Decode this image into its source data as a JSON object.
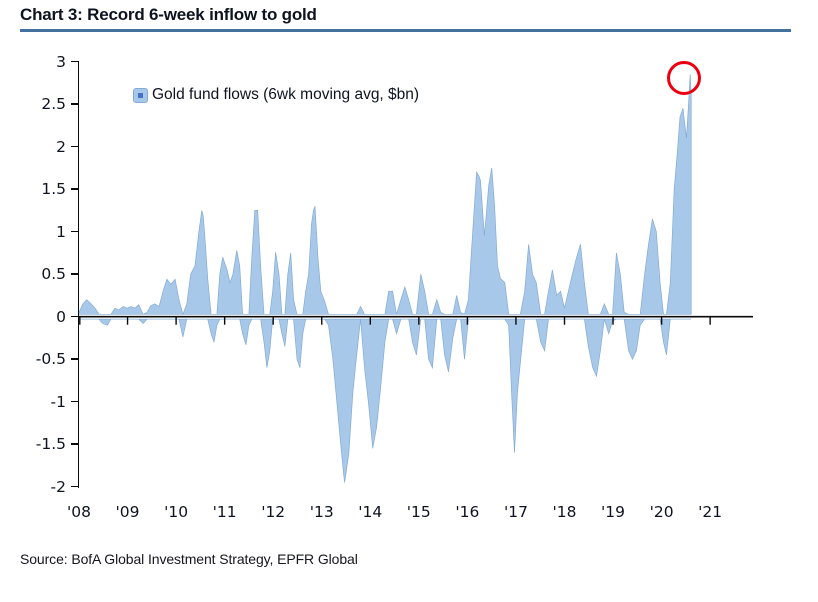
{
  "header": {
    "title": "Chart 3: Record 6-week inflow to gold"
  },
  "legend": {
    "label": "Gold fund flows (6wk moving avg, $bn)"
  },
  "footer": {
    "source": "Source: BofA Global Investment Strategy, EPFR Global"
  },
  "colors": {
    "bar_fill": "#a8c8ea",
    "bar_edge": "#84abd3",
    "axis": "#0a0a0a",
    "text": "#0e1320",
    "title_underline": "#44719e",
    "annotation_red": "#ec0010",
    "legend_inner": "#4472c4",
    "background": "#ffffff"
  },
  "chart_data": {
    "type": "area",
    "title": "Chart 3: Record 6-week inflow to gold",
    "series_name": "Gold fund flows (6wk moving avg, $bn)",
    "xlabel": "",
    "ylabel": "",
    "x_tick_labels": [
      "'08",
      "'09",
      "'10",
      "'11",
      "'12",
      "'13",
      "'14",
      "'15",
      "'16",
      "'17",
      "'18",
      "'19",
      "'20",
      "'21"
    ],
    "x_tick_years": [
      2008,
      2009,
      2010,
      2011,
      2012,
      2013,
      2014,
      2015,
      2016,
      2017,
      2018,
      2019,
      2020,
      2021
    ],
    "y_tick_labels": [
      "3",
      "2.5",
      "2",
      "1.5",
      "1",
      "0.5",
      "0",
      "-0.5",
      "-1",
      "-1.5",
      "-2"
    ],
    "y_ticks": [
      3,
      2.5,
      2,
      1.5,
      1,
      0.5,
      0,
      -0.5,
      -1,
      -1.5,
      -2
    ],
    "ylim": [
      -2,
      3
    ],
    "xlim": [
      2008,
      2021.9
    ],
    "grid": false,
    "legend_position": "upper-left-inside",
    "annotation": {
      "type": "circle",
      "x": 2020.47,
      "y": 2.81,
      "note": "record peak circled"
    },
    "points": [
      [
        2008.0,
        0.05
      ],
      [
        2008.08,
        0.15
      ],
      [
        2008.16,
        0.2
      ],
      [
        2008.25,
        0.15
      ],
      [
        2008.33,
        0.1
      ],
      [
        2008.41,
        0.03
      ],
      [
        2008.49,
        -0.08
      ],
      [
        2008.58,
        -0.1
      ],
      [
        2008.66,
        0.02
      ],
      [
        2008.74,
        0.1
      ],
      [
        2008.82,
        0.08
      ],
      [
        2008.91,
        0.12
      ],
      [
        2008.99,
        0.1
      ],
      [
        2009.07,
        0.12
      ],
      [
        2009.15,
        0.1
      ],
      [
        2009.23,
        0.14
      ],
      [
        2009.32,
        -0.08
      ],
      [
        2009.4,
        0.05
      ],
      [
        2009.48,
        0.13
      ],
      [
        2009.56,
        0.15
      ],
      [
        2009.65,
        0.12
      ],
      [
        2009.73,
        0.3
      ],
      [
        2009.81,
        0.44
      ],
      [
        2009.89,
        0.38
      ],
      [
        2009.98,
        0.44
      ],
      [
        2010.06,
        0.2
      ],
      [
        2010.14,
        -0.24
      ],
      [
        2010.22,
        0.15
      ],
      [
        2010.3,
        0.5
      ],
      [
        2010.39,
        0.6
      ],
      [
        2010.47,
        1.0
      ],
      [
        2010.53,
        1.25
      ],
      [
        2010.56,
        1.18
      ],
      [
        2010.61,
        0.8
      ],
      [
        2010.65,
        0.45
      ],
      [
        2010.72,
        -0.2
      ],
      [
        2010.78,
        -0.3
      ],
      [
        2010.84,
        -0.1
      ],
      [
        2010.9,
        0.5
      ],
      [
        2010.96,
        0.7
      ],
      [
        2011.05,
        0.55
      ],
      [
        2011.11,
        0.4
      ],
      [
        2011.17,
        0.5
      ],
      [
        2011.25,
        0.78
      ],
      [
        2011.31,
        0.6
      ],
      [
        2011.37,
        -0.2
      ],
      [
        2011.44,
        -0.33
      ],
      [
        2011.5,
        -0.1
      ],
      [
        2011.56,
        0.7
      ],
      [
        2011.62,
        1.25
      ],
      [
        2011.68,
        1.25
      ],
      [
        2011.74,
        0.6
      ],
      [
        2011.81,
        -0.3
      ],
      [
        2011.87,
        -0.6
      ],
      [
        2011.93,
        -0.4
      ],
      [
        2011.99,
        0.3
      ],
      [
        2012.05,
        0.76
      ],
      [
        2012.12,
        0.5
      ],
      [
        2012.18,
        -0.2
      ],
      [
        2012.24,
        -0.35
      ],
      [
        2012.3,
        0.5
      ],
      [
        2012.36,
        0.75
      ],
      [
        2012.42,
        0.2
      ],
      [
        2012.49,
        -0.5
      ],
      [
        2012.55,
        -0.6
      ],
      [
        2012.61,
        -0.2
      ],
      [
        2012.67,
        0.3
      ],
      [
        2012.73,
        0.5
      ],
      [
        2012.79,
        1.1
      ],
      [
        2012.83,
        1.25
      ],
      [
        2012.86,
        1.3
      ],
      [
        2012.92,
        0.7
      ],
      [
        2012.98,
        0.3
      ],
      [
        2013.06,
        0.18
      ],
      [
        2013.14,
        -0.1
      ],
      [
        2013.23,
        -0.5
      ],
      [
        2013.31,
        -1.0
      ],
      [
        2013.39,
        -1.5
      ],
      [
        2013.45,
        -1.85
      ],
      [
        2013.47,
        -1.95
      ],
      [
        2013.51,
        -1.8
      ],
      [
        2013.56,
        -1.6
      ],
      [
        2013.64,
        -0.9
      ],
      [
        2013.72,
        -0.45
      ],
      [
        2013.8,
        0.12
      ],
      [
        2013.88,
        -0.6
      ],
      [
        2013.97,
        -1.05
      ],
      [
        2014.05,
        -1.55
      ],
      [
        2014.13,
        -1.3
      ],
      [
        2014.21,
        -0.85
      ],
      [
        2014.3,
        -0.3
      ],
      [
        2014.38,
        0.3
      ],
      [
        2014.46,
        0.3
      ],
      [
        2014.54,
        -0.2
      ],
      [
        2014.63,
        0.2
      ],
      [
        2014.71,
        0.35
      ],
      [
        2014.79,
        0.2
      ],
      [
        2014.87,
        -0.3
      ],
      [
        2014.95,
        -0.45
      ],
      [
        2015.04,
        0.5
      ],
      [
        2015.12,
        0.3
      ],
      [
        2015.2,
        -0.5
      ],
      [
        2015.28,
        -0.6
      ],
      [
        2015.37,
        0.2
      ],
      [
        2015.45,
        0.05
      ],
      [
        2015.53,
        -0.45
      ],
      [
        2015.61,
        -0.65
      ],
      [
        2015.7,
        -0.25
      ],
      [
        2015.78,
        0.25
      ],
      [
        2015.86,
        0.05
      ],
      [
        2015.94,
        -0.5
      ],
      [
        2016.02,
        0.2
      ],
      [
        2016.11,
        1.0
      ],
      [
        2016.19,
        1.7
      ],
      [
        2016.24,
        1.65
      ],
      [
        2016.27,
        1.6
      ],
      [
        2016.35,
        0.95
      ],
      [
        2016.44,
        1.55
      ],
      [
        2016.5,
        1.75
      ],
      [
        2016.56,
        1.3
      ],
      [
        2016.62,
        0.6
      ],
      [
        2016.68,
        0.45
      ],
      [
        2016.77,
        0.4
      ],
      [
        2016.85,
        -0.1
      ],
      [
        2016.91,
        -0.9
      ],
      [
        2016.97,
        -1.6
      ],
      [
        2017.03,
        -0.9
      ],
      [
        2017.09,
        -0.55
      ],
      [
        2017.18,
        0.3
      ],
      [
        2017.26,
        0.85
      ],
      [
        2017.34,
        0.5
      ],
      [
        2017.42,
        0.4
      ],
      [
        2017.51,
        -0.3
      ],
      [
        2017.59,
        -0.4
      ],
      [
        2017.67,
        0.3
      ],
      [
        2017.75,
        0.55
      ],
      [
        2017.84,
        0.25
      ],
      [
        2017.92,
        0.3
      ],
      [
        2018.0,
        0.1
      ],
      [
        2018.08,
        0.3
      ],
      [
        2018.16,
        0.5
      ],
      [
        2018.25,
        0.7
      ],
      [
        2018.33,
        0.85
      ],
      [
        2018.41,
        0.4
      ],
      [
        2018.49,
        -0.35
      ],
      [
        2018.58,
        -0.6
      ],
      [
        2018.66,
        -0.7
      ],
      [
        2018.74,
        -0.4
      ],
      [
        2018.82,
        0.15
      ],
      [
        2018.91,
        -0.2
      ],
      [
        2018.99,
        -0.05
      ],
      [
        2019.07,
        0.75
      ],
      [
        2019.15,
        0.5
      ],
      [
        2019.23,
        0.05
      ],
      [
        2019.32,
        -0.4
      ],
      [
        2019.4,
        -0.5
      ],
      [
        2019.48,
        -0.4
      ],
      [
        2019.56,
        -0.1
      ],
      [
        2019.65,
        0.5
      ],
      [
        2019.73,
        0.85
      ],
      [
        2019.81,
        1.15
      ],
      [
        2019.89,
        1.0
      ],
      [
        2019.97,
        0.4
      ],
      [
        2020.04,
        -0.3
      ],
      [
        2020.1,
        -0.45
      ],
      [
        2020.18,
        0.4
      ],
      [
        2020.26,
        1.5
      ],
      [
        2020.32,
        1.9
      ],
      [
        2020.38,
        2.35
      ],
      [
        2020.44,
        2.45
      ],
      [
        2020.51,
        2.1
      ],
      [
        2020.55,
        2.45
      ],
      [
        2020.59,
        2.85
      ],
      [
        2020.61,
        2.6
      ]
    ]
  }
}
